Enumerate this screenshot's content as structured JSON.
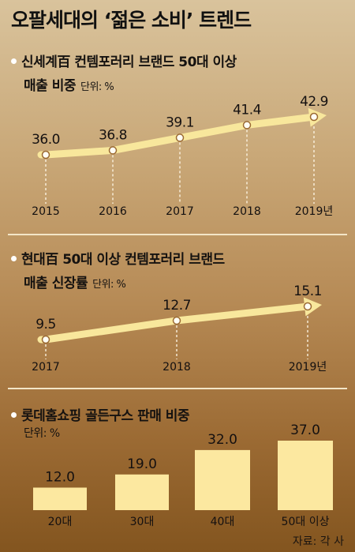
{
  "title": "오팔세대의 ‘젊은 소비’ 트렌드",
  "source": "자료: 각 사",
  "colors": {
    "arrow": "#f8e79c",
    "arrow_stroke": "#9b6a33",
    "bar": "#fce8a0"
  },
  "chart_data": [
    {
      "type": "line",
      "title_line1": "신세계百 컨템포러리 브랜드 50대 이상",
      "title_line2": "매출 비중",
      "unit": "단위: %",
      "x": [
        "2015",
        "2016",
        "2017",
        "2018",
        "2019년"
      ],
      "values": [
        36.0,
        36.8,
        39.1,
        41.4,
        42.9
      ],
      "value_labels": [
        "36.0",
        "36.8",
        "39.1",
        "41.4",
        "42.9"
      ]
    },
    {
      "type": "line",
      "title_line1": "현대百 50대 이상 컨템포러리 브랜드",
      "title_line2": "매출 신장률",
      "unit": "단위: %",
      "x": [
        "2017",
        "2018",
        "2019년"
      ],
      "values": [
        9.5,
        12.7,
        15.1
      ],
      "value_labels": [
        "9.5",
        "12.7",
        "15.1"
      ]
    },
    {
      "type": "bar",
      "title_line1": "롯데홈쇼핑 골든구스 판매 비중",
      "unit": "단위: %",
      "categories": [
        "20대",
        "30대",
        "40대",
        "50대 이상"
      ],
      "values": [
        12.0,
        19.0,
        32.0,
        37.0
      ],
      "value_labels": [
        "12.0",
        "19.0",
        "32.0",
        "37.0"
      ]
    }
  ]
}
